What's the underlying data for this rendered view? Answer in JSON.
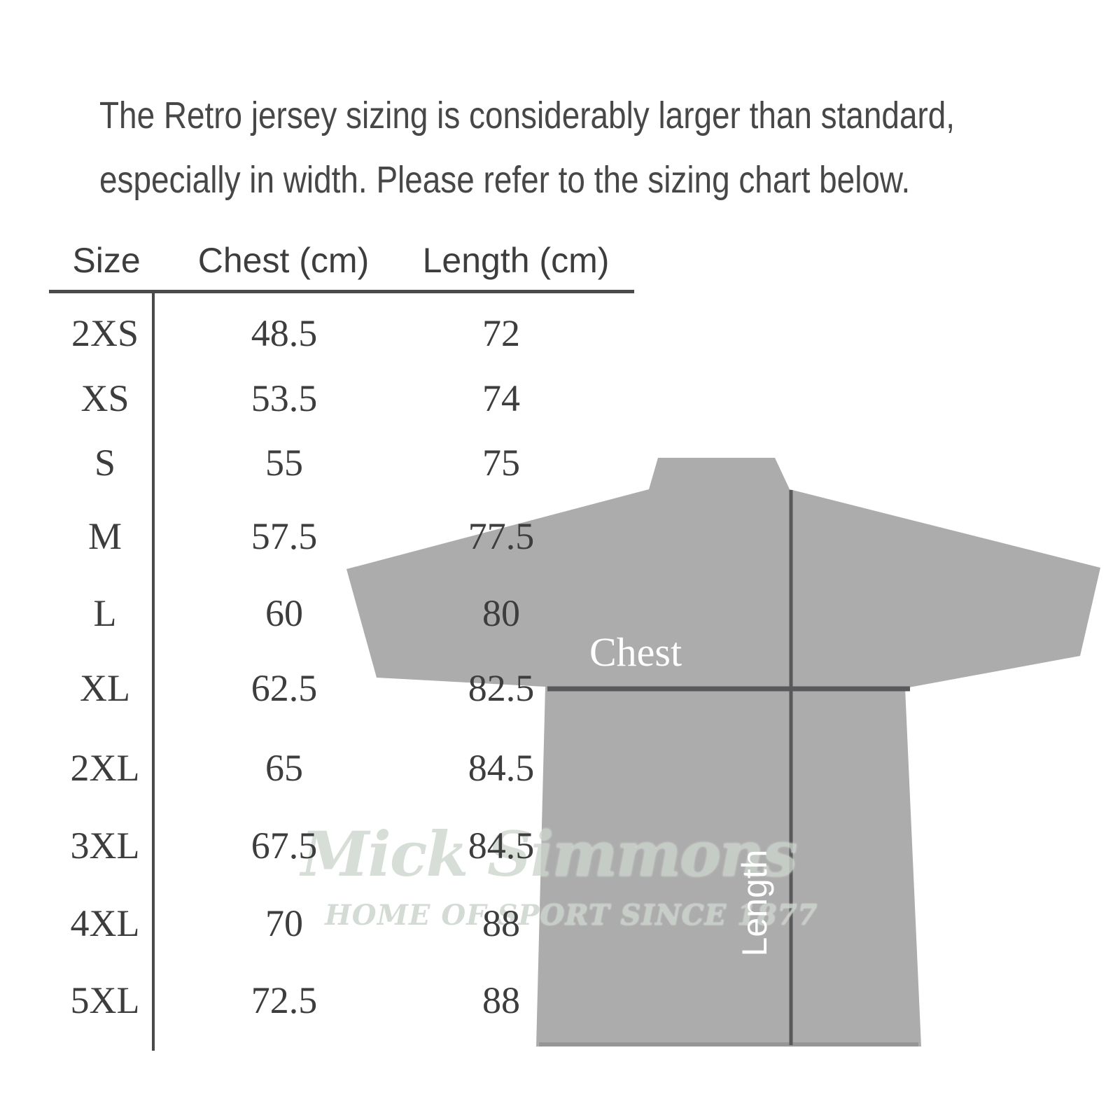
{
  "intro": {
    "line1": "The Retro jersey sizing is considerably larger than standard,",
    "line2": "especially in width. Please refer to the sizing chart below."
  },
  "table": {
    "headers": [
      "Size",
      "Chest (cm)",
      "Length (cm)"
    ]
  },
  "diagram": {
    "chest_label": "Chest",
    "length_label": "Length",
    "shirt_color": "#acacac",
    "line_color": "#59595b",
    "hem_shadow_color": "#969696"
  },
  "watermark": {
    "brand": "Mick Simmons",
    "tagline": "HOME OF SPORT SINCE 1877",
    "color": "#ccd5cd"
  },
  "chart_data": {
    "type": "table",
    "columns": [
      "Size",
      "Chest (cm)",
      "Length (cm)"
    ],
    "rows": [
      [
        "2XS",
        48.5,
        72
      ],
      [
        "XS",
        53.5,
        74
      ],
      [
        "S",
        55,
        75
      ],
      [
        "M",
        57.5,
        77.5
      ],
      [
        "L",
        60,
        80
      ],
      [
        "XL",
        62.5,
        82.5
      ],
      [
        "2XL",
        65,
        84.5
      ],
      [
        "3XL",
        67.5,
        84.5
      ],
      [
        "4XL",
        70,
        88
      ],
      [
        "5XL",
        72.5,
        88
      ]
    ]
  }
}
